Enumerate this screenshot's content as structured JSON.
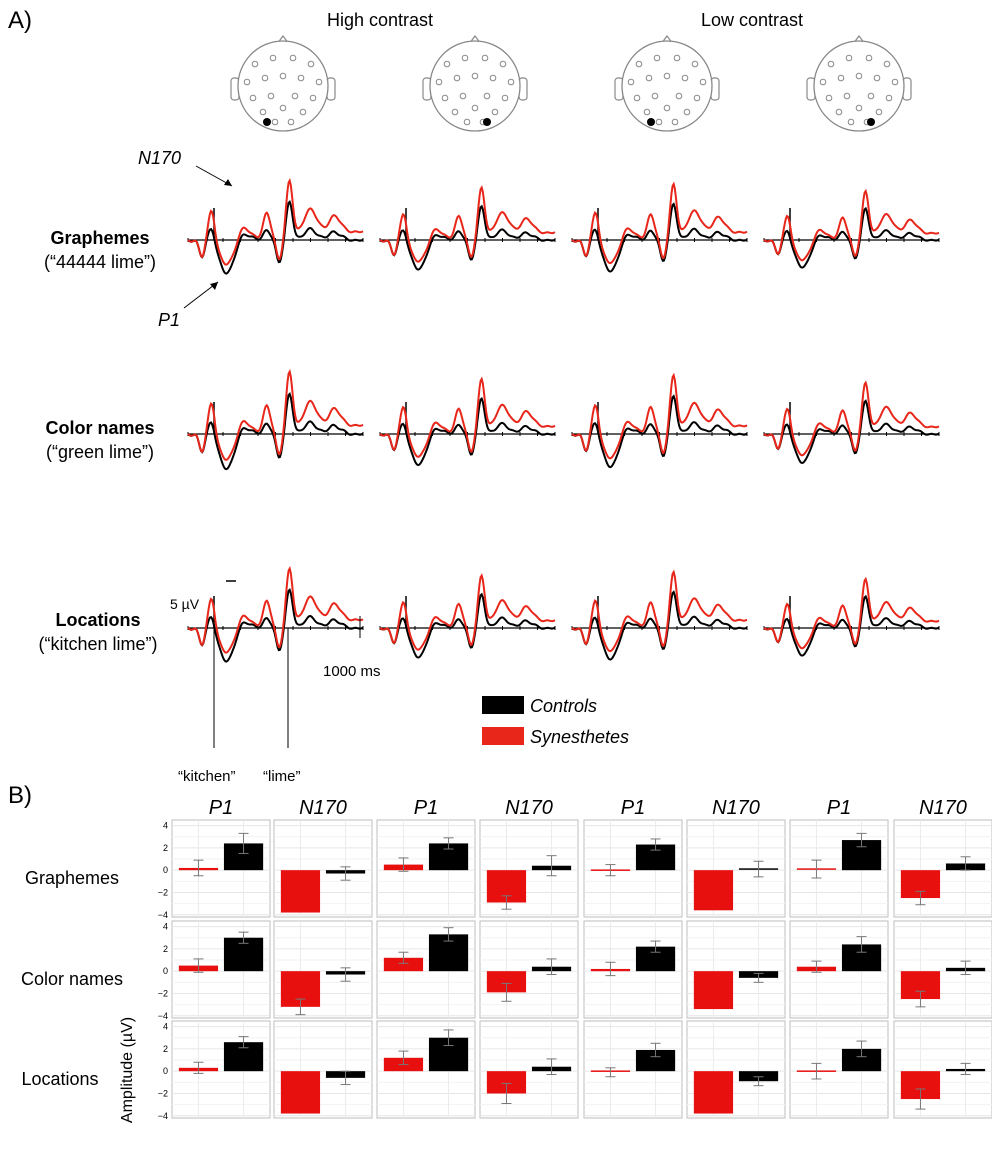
{
  "panel_a": {
    "label": "A)",
    "column_headers": [
      "High contrast",
      "Low contrast"
    ],
    "rows": [
      {
        "title": "Graphemes",
        "example": "(“44444 lime”)"
      },
      {
        "title": "Color names",
        "example": "(“green lime”)"
      },
      {
        "title": "Locations",
        "example": "(“kitchen lime”)"
      }
    ],
    "annotations": {
      "n170": "N170",
      "p1": "P1",
      "scale_amplitude": "5  µV",
      "scale_time": "1000 ms",
      "word1": "“kitchen”",
      "word2": "“lime”"
    },
    "legend": [
      {
        "name": "Controls",
        "color": "#000000"
      },
      {
        "name": "Synesthetes",
        "color": "#e8261a"
      }
    ],
    "electrodes": [
      "left-occipital",
      "right-occipital",
      "left-occipital",
      "right-occipital"
    ]
  },
  "panel_b": {
    "label": "B)",
    "components": [
      "P1",
      "N170",
      "P1",
      "N170",
      "P1",
      "N170",
      "P1",
      "N170"
    ],
    "rows": [
      "Graphemes",
      "Color names",
      "Locations"
    ],
    "ylabel": "Amplitude (µV)",
    "yticks": [
      "4",
      "2",
      "0",
      "−2",
      "−4"
    ]
  },
  "chart_data": [
    {
      "type": "line",
      "name": "ERP waveforms",
      "series": [
        {
          "name": "Controls",
          "color": "#000000"
        },
        {
          "name": "Synesthetes",
          "color": "#e8261a"
        }
      ]
    },
    {
      "type": "bar",
      "name": "ERP component amplitudes",
      "ylim": [
        -4.2,
        4.5
      ],
      "series": [
        {
          "name": "Synesthetes",
          "color": "#e80f0f"
        },
        {
          "name": "Controls",
          "color": "#000000"
        }
      ],
      "cells": [
        [
          {
            "syn": 0.2,
            "syn_err": 0.7,
            "con": 2.4,
            "con_err": 0.9
          },
          {
            "syn": -3.8,
            "syn_err": 0.0,
            "con": -0.3,
            "con_err": 0.6
          },
          {
            "syn": 0.5,
            "syn_err": 0.6,
            "con": 2.4,
            "con_err": 0.5
          },
          {
            "syn": -2.9,
            "syn_err": 0.6,
            "con": 0.4,
            "con_err": 0.9
          },
          {
            "syn": 0.0,
            "syn_err": 0.5,
            "con": 2.3,
            "con_err": 0.5
          },
          {
            "syn": -3.6,
            "syn_err": 0.0,
            "con": 0.1,
            "con_err": 0.7
          },
          {
            "syn": 0.1,
            "syn_err": 0.8,
            "con": 2.7,
            "con_err": 0.6
          },
          {
            "syn": -2.5,
            "syn_err": 0.6,
            "con": 0.6,
            "con_err": 0.6
          }
        ],
        [
          {
            "syn": 0.5,
            "syn_err": 0.6,
            "con": 3.0,
            "con_err": 0.5
          },
          {
            "syn": -3.2,
            "syn_err": 0.7,
            "con": -0.3,
            "con_err": 0.6
          },
          {
            "syn": 1.2,
            "syn_err": 0.5,
            "con": 3.3,
            "con_err": 0.6
          },
          {
            "syn": -1.9,
            "syn_err": 0.8,
            "con": 0.4,
            "con_err": 0.7
          },
          {
            "syn": 0.2,
            "syn_err": 0.6,
            "con": 2.2,
            "con_err": 0.5
          },
          {
            "syn": -3.4,
            "syn_err": 0.0,
            "con": -0.6,
            "con_err": 0.4
          },
          {
            "syn": 0.4,
            "syn_err": 0.5,
            "con": 2.4,
            "con_err": 0.7
          },
          {
            "syn": -2.5,
            "syn_err": 0.7,
            "con": 0.3,
            "con_err": 0.6
          }
        ],
        [
          {
            "syn": 0.3,
            "syn_err": 0.5,
            "con": 2.6,
            "con_err": 0.5
          },
          {
            "syn": -3.8,
            "syn_err": 0.0,
            "con": -0.6,
            "con_err": 0.6
          },
          {
            "syn": 1.2,
            "syn_err": 0.6,
            "con": 3.0,
            "con_err": 0.7
          },
          {
            "syn": -2.0,
            "syn_err": 0.9,
            "con": 0.4,
            "con_err": 0.7
          },
          {
            "syn": -0.1,
            "syn_err": 0.4,
            "con": 1.9,
            "con_err": 0.6
          },
          {
            "syn": -3.8,
            "syn_err": 0.0,
            "con": -0.9,
            "con_err": 0.4
          },
          {
            "syn": 0.0,
            "syn_err": 0.7,
            "con": 2.0,
            "con_err": 0.7
          },
          {
            "syn": -2.5,
            "syn_err": 0.9,
            "con": 0.2,
            "con_err": 0.5
          }
        ]
      ]
    }
  ]
}
